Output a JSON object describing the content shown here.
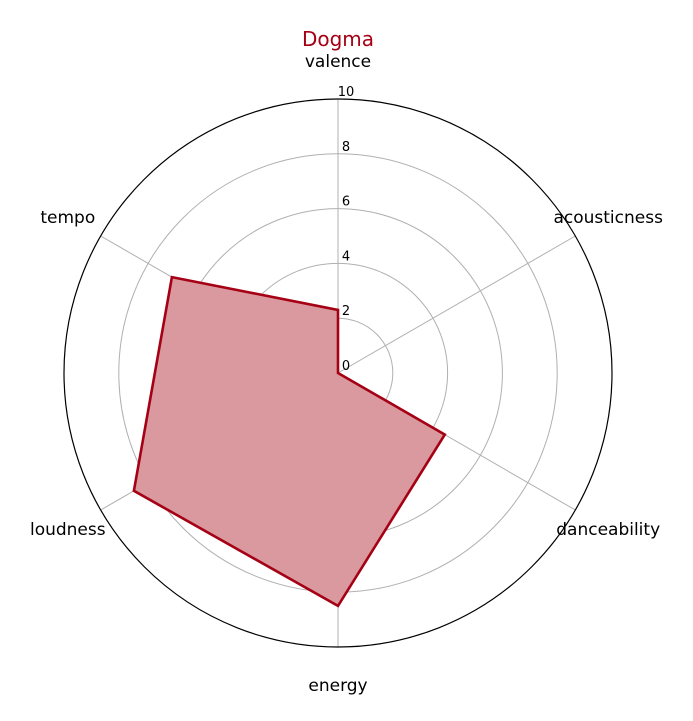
{
  "chart_data": {
    "type": "radar",
    "title": "Dogma",
    "axes": [
      "valence",
      "acousticness",
      "danceability",
      "energy",
      "loudness",
      "tempo"
    ],
    "series": [
      {
        "values": [
          2.3,
          0.0,
          4.5,
          8.5,
          8.6,
          7.0
        ]
      }
    ],
    "rlim": [
      0,
      10
    ],
    "r_ticks": [
      "0",
      "2",
      "4",
      "6",
      "8",
      "10"
    ],
    "grid": true,
    "colors": {
      "line": "#a50014",
      "fill": "#d9999f",
      "title": "#a50014",
      "grid": "#b0b0b0",
      "outer": "#000000"
    }
  }
}
